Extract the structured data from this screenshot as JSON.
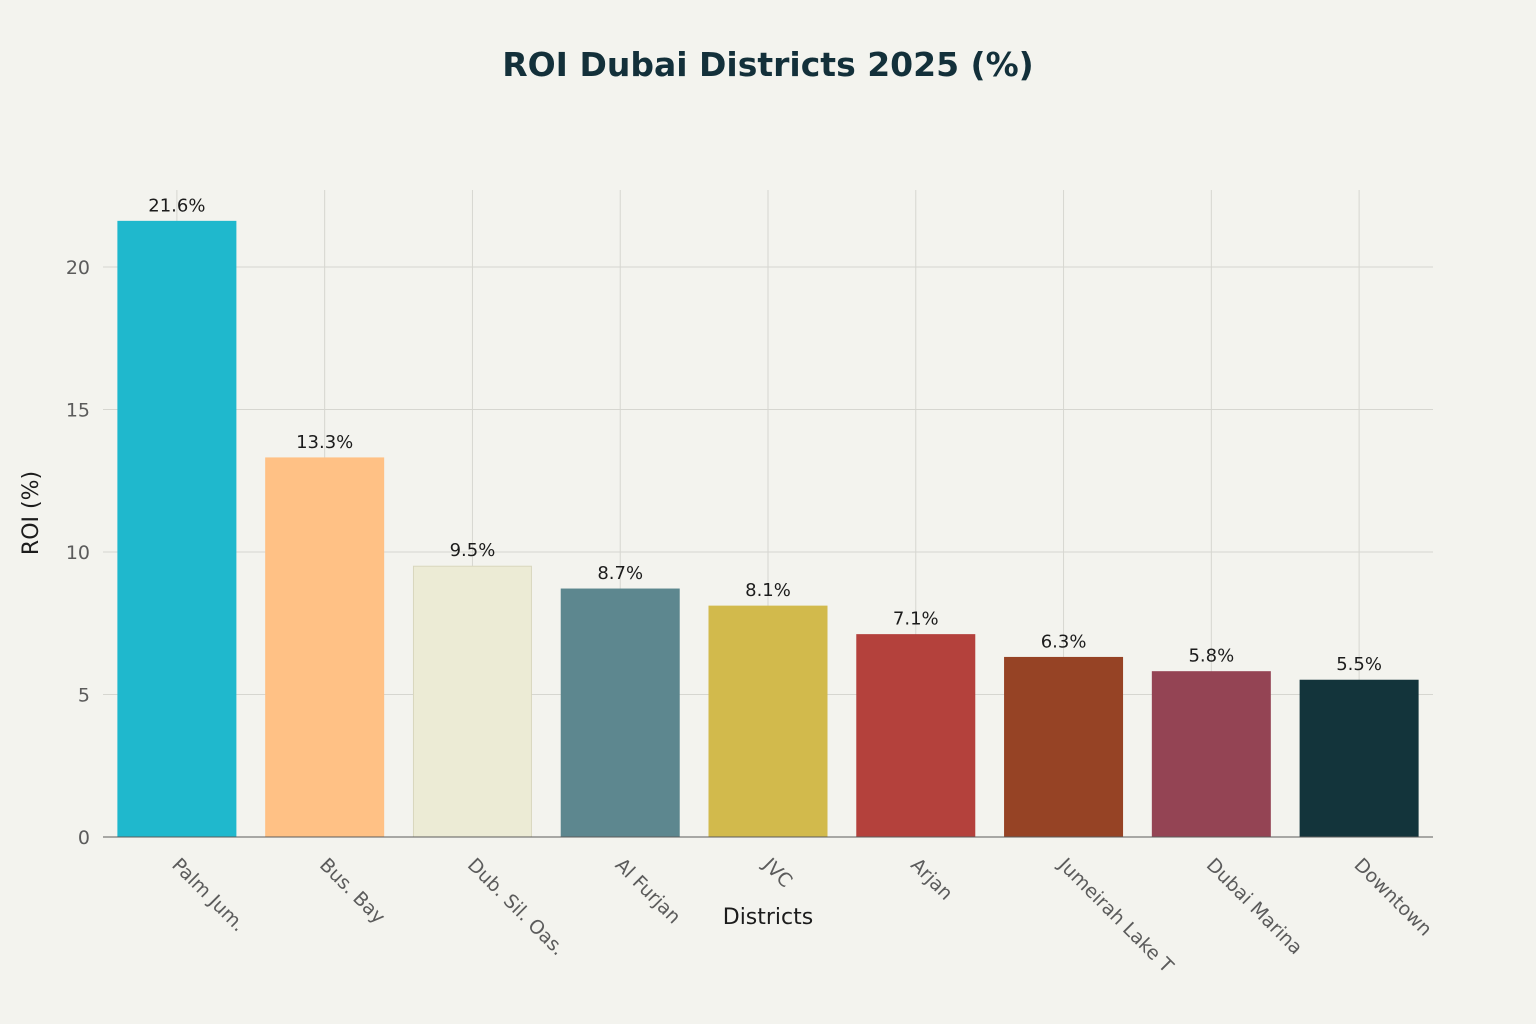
{
  "chart_data": {
    "type": "bar",
    "title": "ROI Dubai Districts 2025 (%)",
    "xlabel": "Districts",
    "ylabel": "ROI (%)",
    "categories": [
      "Palm Jum.",
      "Bus. Bay",
      "Dub. Sil. Oas.",
      "Al Furjan",
      "JVC",
      "Arjan",
      "Jumeirah Lake T",
      "Dubai Marina",
      "Downtown"
    ],
    "values": [
      21.6,
      13.3,
      9.5,
      8.7,
      8.1,
      7.1,
      6.3,
      5.8,
      5.5
    ],
    "data_labels": [
      "21.6%",
      "13.3%",
      "9.5%",
      "8.7%",
      "8.1%",
      "7.1%",
      "6.3%",
      "5.8%",
      "5.5%"
    ],
    "colors": [
      "#1fb8cd",
      "#ffc185",
      "#ecebd5",
      "#5d878f",
      "#d2ba4c",
      "#b4413c",
      "#964325",
      "#944454",
      "#13343b"
    ],
    "ylim": [
      0,
      22.7
    ],
    "yticks": [
      0,
      5,
      10,
      15,
      20
    ],
    "grid": true,
    "legend": false
  }
}
